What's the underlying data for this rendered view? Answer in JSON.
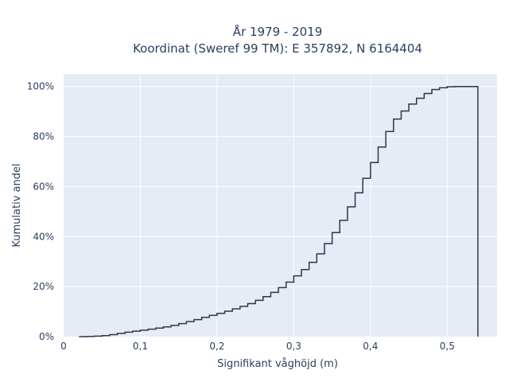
{
  "chart_data": {
    "type": "line",
    "step": true,
    "title_line1": "År 1979 - 2019",
    "title_line2": "Koordinat (Sweref 99 TM): E 357892, N 6164404",
    "xlabel": "Signifikant våghöjd (m)",
    "ylabel": "Kumulativ andel",
    "xlim": [
      0,
      0.565
    ],
    "ylim": [
      0,
      1.05
    ],
    "xticks": [
      {
        "value": 0,
        "label": "0"
      },
      {
        "value": 0.1,
        "label": "0,1"
      },
      {
        "value": 0.2,
        "label": "0,2"
      },
      {
        "value": 0.3,
        "label": "0,3"
      },
      {
        "value": 0.4,
        "label": "0,4"
      },
      {
        "value": 0.5,
        "label": "0,5"
      }
    ],
    "yticks": [
      {
        "value": 0,
        "label": "0%"
      },
      {
        "value": 0.2,
        "label": "20%"
      },
      {
        "value": 0.4,
        "label": "40%"
      },
      {
        "value": 0.6,
        "label": "60%"
      },
      {
        "value": 0.8,
        "label": "80%"
      },
      {
        "value": 1.0,
        "label": "100%"
      }
    ],
    "grid": true,
    "line_color": "#2d3748",
    "background_color": "#e5ecf6",
    "x": [
      0.02,
      0.03,
      0.04,
      0.05,
      0.06,
      0.07,
      0.08,
      0.09,
      0.1,
      0.11,
      0.12,
      0.13,
      0.14,
      0.15,
      0.16,
      0.17,
      0.18,
      0.19,
      0.2,
      0.21,
      0.22,
      0.23,
      0.24,
      0.25,
      0.26,
      0.27,
      0.28,
      0.29,
      0.3,
      0.31,
      0.32,
      0.33,
      0.34,
      0.35,
      0.36,
      0.37,
      0.38,
      0.39,
      0.4,
      0.41,
      0.42,
      0.43,
      0.44,
      0.45,
      0.46,
      0.47,
      0.48,
      0.49,
      0.5,
      0.51,
      0.52,
      0.53,
      0.54
    ],
    "y": [
      0.0,
      0.001,
      0.002,
      0.004,
      0.008,
      0.013,
      0.018,
      0.022,
      0.026,
      0.03,
      0.034,
      0.039,
      0.045,
      0.052,
      0.06,
      0.068,
      0.077,
      0.085,
      0.093,
      0.102,
      0.111,
      0.121,
      0.132,
      0.145,
      0.16,
      0.177,
      0.196,
      0.218,
      0.243,
      0.268,
      0.297,
      0.331,
      0.372,
      0.416,
      0.465,
      0.519,
      0.575,
      0.633,
      0.696,
      0.758,
      0.82,
      0.87,
      0.902,
      0.93,
      0.953,
      0.972,
      0.988,
      0.995,
      0.999,
      1.0,
      1.0,
      1.0,
      1.0
    ]
  }
}
